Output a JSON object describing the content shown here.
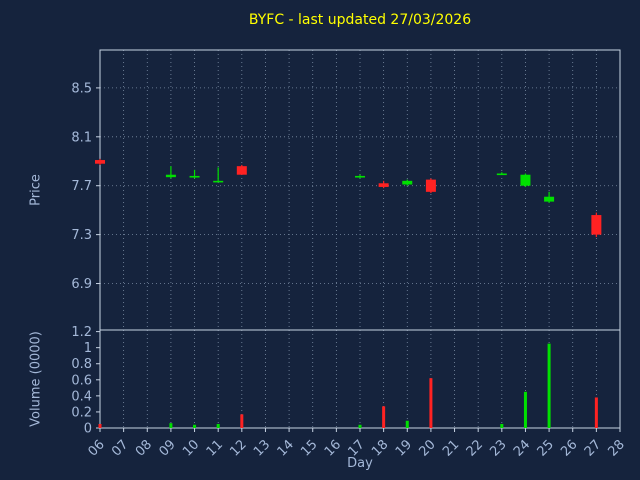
{
  "chart_data": {
    "type": "candlestick",
    "title": "BYFC - last updated 27/03/2026",
    "xlabel": "Day",
    "price_axis_label": "Price",
    "volume_axis_label": "Volume (0000)",
    "grid": true,
    "x_range": [
      6,
      28
    ],
    "day_labels": [
      "06",
      "07",
      "08",
      "09",
      "10",
      "11",
      "12",
      "13",
      "14",
      "15",
      "16",
      "17",
      "18",
      "19",
      "20",
      "21",
      "22",
      "23",
      "24",
      "25",
      "26",
      "27",
      "28"
    ],
    "price_ticks": [
      6.9,
      7.3,
      7.7,
      8.1,
      8.5
    ],
    "price_ylim": [
      6.52,
      8.81
    ],
    "volume_ticks": [
      0,
      0.2,
      0.4,
      0.6,
      0.8,
      1,
      1.2
    ],
    "volume_ylim": [
      0,
      1.22
    ],
    "colors": {
      "background": "#15233d",
      "up": "#00e000",
      "down": "#ff2222",
      "grid": "#7d8fa6",
      "axis": "#c8d4e4",
      "tick_text": "#a4b8d8",
      "title": "#ffff00"
    },
    "candles": [
      {
        "day": 6,
        "open": 7.91,
        "high": 7.92,
        "low": 7.87,
        "close": 7.88,
        "volume": 0.05
      },
      {
        "day": 9,
        "open": 7.77,
        "high": 7.86,
        "low": 7.76,
        "close": 7.79,
        "volume": 0.06
      },
      {
        "day": 10,
        "open": 7.77,
        "high": 7.83,
        "low": 7.76,
        "close": 7.78,
        "volume": 0.04
      },
      {
        "day": 11,
        "open": 7.74,
        "high": 7.85,
        "low": 7.73,
        "close": 7.74,
        "volume": 0.05
      },
      {
        "day": 12,
        "open": 7.86,
        "high": 7.87,
        "low": 7.79,
        "close": 7.79,
        "volume": 0.17
      },
      {
        "day": 17,
        "open": 7.77,
        "high": 7.79,
        "low": 7.76,
        "close": 7.78,
        "volume": 0.04
      },
      {
        "day": 18,
        "open": 7.72,
        "high": 7.74,
        "low": 7.68,
        "close": 7.69,
        "volume": 0.27
      },
      {
        "day": 19,
        "open": 7.71,
        "high": 7.75,
        "low": 7.7,
        "close": 7.74,
        "volume": 0.09
      },
      {
        "day": 20,
        "open": 7.75,
        "high": 7.76,
        "low": 7.64,
        "close": 7.65,
        "volume": 0.62
      },
      {
        "day": 23,
        "open": 7.79,
        "high": 7.81,
        "low": 7.79,
        "close": 7.8,
        "volume": 0.05
      },
      {
        "day": 24,
        "open": 7.7,
        "high": 7.8,
        "low": 7.69,
        "close": 7.79,
        "volume": 0.45
      },
      {
        "day": 25,
        "open": 7.57,
        "high": 7.65,
        "low": 7.56,
        "close": 7.61,
        "volume": 1.05
      },
      {
        "day": 27,
        "open": 7.46,
        "high": 7.48,
        "low": 7.28,
        "close": 7.3,
        "volume": 0.38
      }
    ]
  }
}
